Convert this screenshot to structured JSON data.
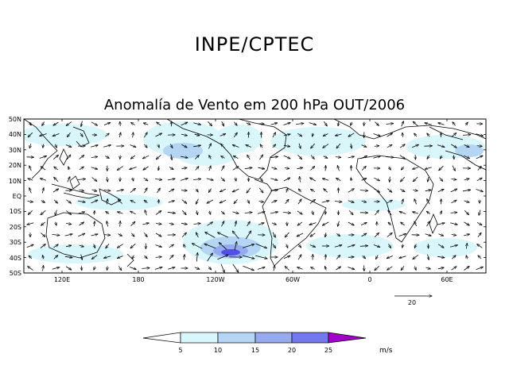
{
  "header": {
    "title": "INPE/CPTEC"
  },
  "map": {
    "title": "Anomalía de Vento em 200 hPa OUT/2006",
    "lat_ticks": [
      "50N",
      "40N",
      "30N",
      "20N",
      "10N",
      "EQ",
      "10S",
      "20S",
      "30S",
      "40S",
      "50S"
    ],
    "lon_ticks": [
      "120E",
      "180",
      "120W",
      "60W",
      "0",
      "60E"
    ],
    "reference_vector": {
      "value": "20"
    }
  },
  "colorbar": {
    "labels": [
      "5",
      "10",
      "15",
      "20",
      "25"
    ],
    "units": "m/s",
    "colors": [
      "#ffffff",
      "#d9f6fb",
      "#b4d6f4",
      "#96aaf0",
      "#7278ee",
      "#5050e6",
      "#a000c8"
    ]
  }
}
